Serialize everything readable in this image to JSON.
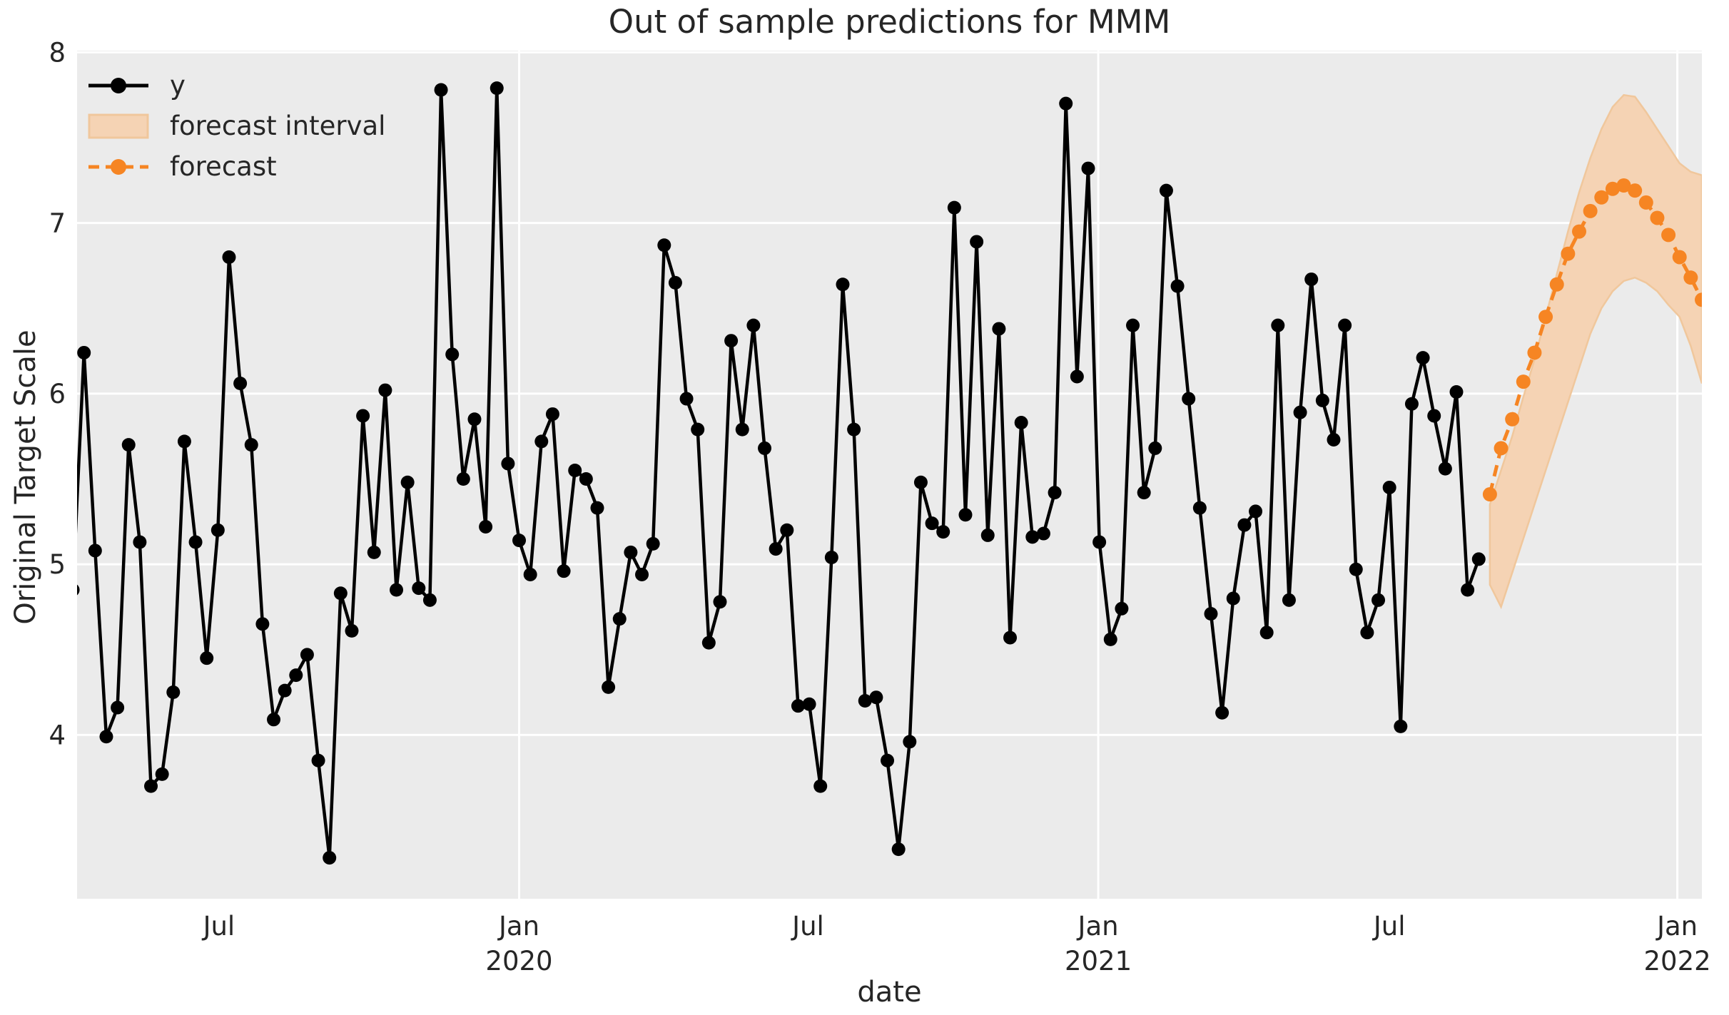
{
  "title": "Out of sample predictions for MMM",
  "colors": {
    "series_y": "#000000",
    "forecast": "#f68523",
    "band_fill": "#f5d3b4",
    "band_edge": "#f0c79c",
    "plot_background": "#ebebeb",
    "gridline": "#ffffff",
    "text": "#262626"
  },
  "chart_data": {
    "type": "line",
    "title": "Out of sample predictions for MMM",
    "xlabel": "date",
    "ylabel": "Original Target Scale",
    "grid": true,
    "legend_position": "upper left",
    "legend_entries": [
      "y",
      "forecast interval",
      "forecast"
    ],
    "xlim_weeks": [
      0.38,
      146.0
    ],
    "ylim": [
      3.04,
      8.01
    ],
    "y_ticks": [
      4,
      5,
      6,
      7,
      8
    ],
    "x_ticks": [
      {
        "pos": 13.1,
        "label": "Jul",
        "year": "",
        "gridline": false
      },
      {
        "pos": 40.0,
        "label": "Jan",
        "year": "2020",
        "gridline": true
      },
      {
        "pos": 65.9,
        "label": "Jul",
        "year": "",
        "gridline": false
      },
      {
        "pos": 91.9,
        "label": "Jan",
        "year": "2021",
        "gridline": true
      },
      {
        "pos": 118.0,
        "label": "Jul",
        "year": "",
        "gridline": false
      },
      {
        "pos": 143.8,
        "label": "Jan",
        "year": "2022",
        "gridline": true
      }
    ],
    "series": [
      {
        "name": "y",
        "style": "solid-line-with-markers",
        "start_week": 0,
        "values": [
          4.85,
          6.24,
          5.08,
          3.99,
          4.16,
          5.7,
          5.13,
          3.7,
          3.77,
          4.25,
          5.72,
          5.13,
          4.45,
          5.2,
          6.8,
          6.06,
          5.7,
          4.65,
          4.09,
          4.26,
          4.35,
          4.47,
          3.85,
          3.28,
          4.83,
          4.61,
          5.87,
          5.07,
          6.02,
          4.85,
          5.48,
          4.86,
          4.79,
          7.78,
          6.23,
          5.5,
          5.85,
          5.22,
          7.79,
          5.59,
          5.14,
          4.94,
          5.72,
          5.88,
          4.96,
          5.55,
          5.5,
          5.33,
          4.28,
          4.68,
          5.07,
          4.94,
          5.12,
          6.87,
          6.65,
          5.97,
          5.79,
          4.54,
          4.78,
          6.31,
          5.79,
          6.4,
          5.68,
          5.09,
          5.2,
          4.17,
          4.18,
          3.7,
          5.04,
          6.64,
          5.79,
          4.2,
          4.22,
          3.85,
          3.33,
          3.96,
          5.48,
          5.24,
          5.19,
          7.09,
          5.29,
          6.89,
          5.17,
          6.38,
          4.57,
          5.83,
          5.16,
          5.18,
          5.42,
          7.7,
          6.1,
          7.32,
          5.13,
          4.56,
          4.74,
          6.4,
          5.42,
          5.68,
          7.19,
          6.63,
          5.97,
          5.33,
          4.71,
          4.13,
          4.8,
          5.23,
          5.31,
          4.6,
          6.4,
          4.79,
          5.89,
          6.67,
          5.96,
          5.73,
          6.4,
          4.97,
          4.6,
          4.79,
          5.45,
          4.05,
          5.94,
          6.21,
          5.87,
          5.56,
          6.01,
          4.85,
          5.03
        ]
      },
      {
        "name": "forecast",
        "style": "dashed-line-with-markers",
        "start_week": 127,
        "values": [
          5.41,
          5.68,
          5.85,
          6.07,
          6.24,
          6.45,
          6.64,
          6.82,
          6.95,
          7.07,
          7.15,
          7.2,
          7.22,
          7.19,
          7.12,
          7.03,
          6.93,
          6.8,
          6.68,
          6.55
        ]
      },
      {
        "name": "forecast interval",
        "style": "band",
        "start_week": 127,
        "lower": [
          4.88,
          4.75,
          4.95,
          5.15,
          5.35,
          5.55,
          5.75,
          5.95,
          6.15,
          6.35,
          6.5,
          6.6,
          6.66,
          6.68,
          6.65,
          6.6,
          6.52,
          6.45,
          6.28,
          6.06
        ],
        "upper": [
          5.35,
          5.55,
          5.75,
          5.98,
          6.2,
          6.45,
          6.7,
          6.95,
          7.18,
          7.38,
          7.55,
          7.68,
          7.75,
          7.74,
          7.65,
          7.55,
          7.45,
          7.35,
          7.3,
          7.28
        ]
      }
    ]
  }
}
